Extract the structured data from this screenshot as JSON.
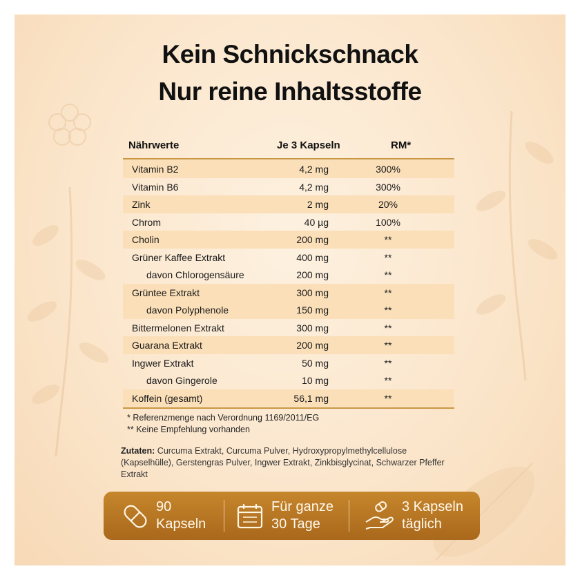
{
  "title": {
    "line1": "Kein Schnickschnack",
    "line2": "Nur reine Inhaltsstoffe"
  },
  "table": {
    "headers": {
      "name": "Nährwerte",
      "amount": "Je 3 Kapseln",
      "rm": "RM*"
    },
    "rows": [
      {
        "name": "Vitamin B2",
        "amount": "4,2 mg",
        "rm": "300%"
      },
      {
        "name": "Vitamin B6",
        "amount": "4,2 mg",
        "rm": "300%"
      },
      {
        "name": "Zink",
        "amount": "2 mg",
        "rm": "20%"
      },
      {
        "name": "Chrom",
        "amount": "40 µg",
        "rm": "100%"
      },
      {
        "name": "Cholin",
        "amount": "200 mg",
        "rm": "**"
      },
      {
        "name": "Grüner Kaffee Extrakt",
        "amount": "400 mg",
        "rm": "**"
      },
      {
        "name": "davon Chlorogensäure",
        "amount": "200 mg",
        "rm": "**"
      },
      {
        "name": "Grüntee Extrakt",
        "amount": "300 mg",
        "rm": "**"
      },
      {
        "name": "davon Polyphenole",
        "amount": "150 mg",
        "rm": "**"
      },
      {
        "name": "Bittermelonen Extrakt",
        "amount": "300 mg",
        "rm": "**"
      },
      {
        "name": "Guarana Extrakt",
        "amount": "200 mg",
        "rm": "**"
      },
      {
        "name": "Ingwer Extrakt",
        "amount": "50 mg",
        "rm": "**"
      },
      {
        "name": "davon Gingerole",
        "amount": "10 mg",
        "rm": "**"
      },
      {
        "name": "Koffein (gesamt)",
        "amount": "56,1 mg",
        "rm": "**"
      }
    ]
  },
  "notes": {
    "reference": "* Referenzmenge nach Verordnung 1169/2011/EG",
    "no_recommendation": "** Keine Empfehlung vorhanden"
  },
  "ingredients": {
    "label": "Zutaten:",
    "text": " Curcuma Extrakt, Curcuma Pulver, Hydroxypropylmethylcellulose (Kapselhülle), Gerstengras Pulver, Ingwer Extrakt, Zinkbisglycinat, Schwarzer Pfeffer Extrakt"
  },
  "info_bar": {
    "capsules": {
      "line1": "90",
      "line2": "Kapseln",
      "icon": "capsule-icon"
    },
    "days": {
      "line1": "Für ganze",
      "line2": "30 Tage",
      "icon": "calendar-icon"
    },
    "dose": {
      "line1": "3 Kapseln",
      "line2": "täglich",
      "icon": "hand-pill-icon"
    }
  },
  "colors": {
    "background": "#fbe6cc",
    "row_shade": "#fadfb8",
    "accent_line": "#c9963f",
    "bar": "#b8772a"
  }
}
